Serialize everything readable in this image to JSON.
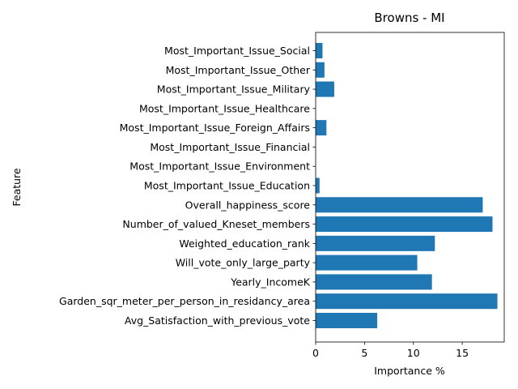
{
  "chart_data": {
    "type": "bar",
    "orientation": "horizontal",
    "title": "Browns - MI",
    "xlabel": "Importance %",
    "ylabel": "Feature",
    "xlim": [
      0,
      19.3
    ],
    "xticks": [
      0,
      5,
      10,
      15
    ],
    "grid": false,
    "bar_color": "#1f77b4",
    "categories": [
      "Avg_Satisfaction_with_previous_vote",
      "Garden_sqr_meter_per_person_in_residancy_area",
      "Yearly_IncomeK",
      "Will_vote_only_large_party",
      "Weighted_education_rank",
      "Number_of_valued_Kneset_members",
      "Overall_happiness_score",
      "Most_Important_Issue_Education",
      "Most_Important_Issue_Environment",
      "Most_Important_Issue_Financial",
      "Most_Important_Issue_Foreign_Affairs",
      "Most_Important_Issue_Healthcare",
      "Most_Important_Issue_Military",
      "Most_Important_Issue_Other",
      "Most_Important_Issue_Social"
    ],
    "values": [
      6.3,
      18.6,
      11.9,
      10.4,
      12.2,
      18.1,
      17.1,
      0.4,
      0.0,
      0.0,
      1.1,
      0.0,
      1.9,
      0.9,
      0.7
    ]
  }
}
